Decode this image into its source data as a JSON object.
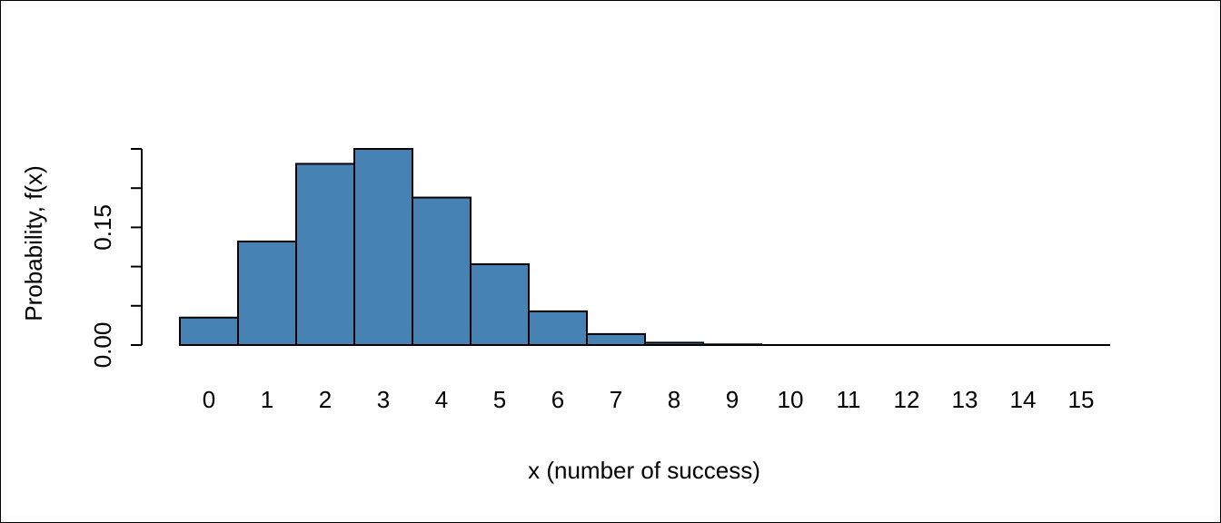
{
  "colors": {
    "bar_fill": "#4682B4",
    "bar_stroke": "#000000",
    "axis": "#000000",
    "background": "#FFFFFF"
  },
  "chart_data": {
    "type": "bar",
    "title": "",
    "xlabel": "x (number of success)",
    "ylabel": "Probability, f(x)",
    "categories": [
      "0",
      "1",
      "2",
      "3",
      "4",
      "5",
      "6",
      "7",
      "8",
      "9",
      "10",
      "11",
      "12",
      "13",
      "14",
      "15"
    ],
    "values": [
      0.035,
      0.132,
      0.231,
      0.25,
      0.188,
      0.103,
      0.043,
      0.014,
      0.003,
      0.0008,
      0.0001,
      0.0,
      0.0,
      0.0,
      0.0,
      0.0
    ],
    "ylim": [
      0,
      0.25
    ],
    "y_ticks": [
      0.0,
      0.05,
      0.1,
      0.15,
      0.2,
      0.25
    ],
    "y_tick_labels": [
      "0.00",
      "",
      "",
      "0.15",
      "",
      ""
    ],
    "grid": false,
    "legend": "none"
  }
}
